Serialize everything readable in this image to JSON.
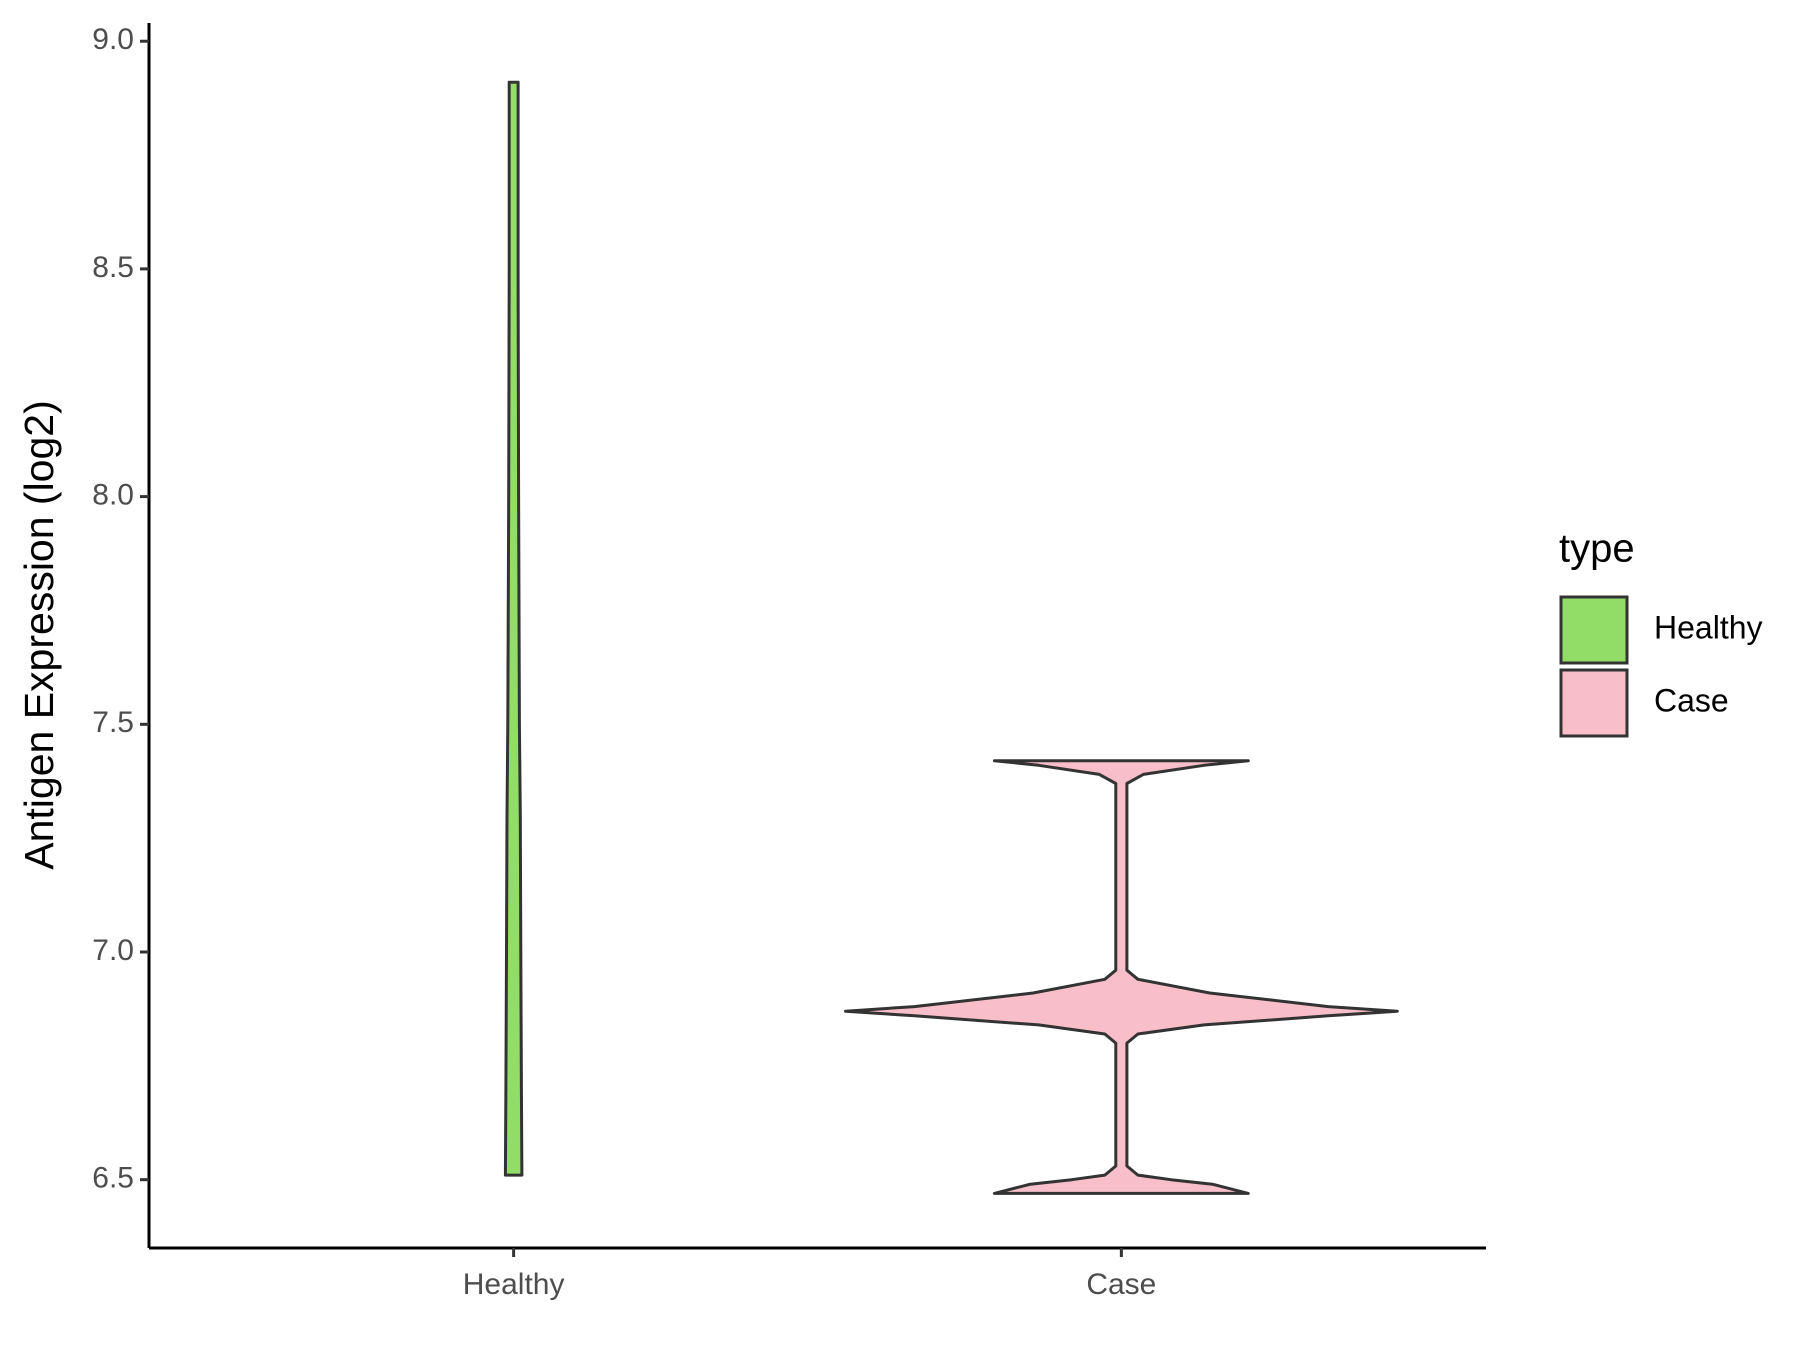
{
  "chart_data": {
    "type": "violin",
    "y_label": "Antigen Expression (log2)",
    "categories": [
      "Healthy",
      "Case"
    ],
    "legend_title": "type",
    "ylim": [
      6.35,
      9.04
    ],
    "yticks": [
      {
        "value": 6.5,
        "label": "6.5"
      },
      {
        "value": 7,
        "label": "7.0"
      },
      {
        "value": 7.5,
        "label": "7.5"
      },
      {
        "value": 8,
        "label": "8.0"
      },
      {
        "value": 8.5,
        "label": "8.5"
      },
      {
        "value": 9,
        "label": "9.0"
      }
    ],
    "series": [
      {
        "name": "Healthy",
        "color": "#92dd68",
        "y": [
          6.51,
          6.7,
          7.0,
          7.3,
          7.5,
          8.0,
          8.5,
          8.91
        ],
        "density": [
          0.03,
          0.028,
          0.026,
          0.024,
          0.021,
          0.018,
          0.016,
          0.016
        ]
      },
      {
        "name": "Case",
        "color": "#f8bfca",
        "y": [
          6.47,
          6.49,
          6.5,
          6.51,
          6.53,
          6.8,
          6.82,
          6.84,
          6.86,
          6.87,
          6.88,
          6.91,
          6.94,
          6.96,
          7.37,
          7.39,
          7.41,
          7.42
        ],
        "density": [
          0.46,
          0.33,
          0.18,
          0.06,
          0.02,
          0.02,
          0.06,
          0.3,
          0.75,
          1.0,
          0.75,
          0.32,
          0.06,
          0.02,
          0.02,
          0.08,
          0.3,
          0.46
        ]
      }
    ]
  }
}
